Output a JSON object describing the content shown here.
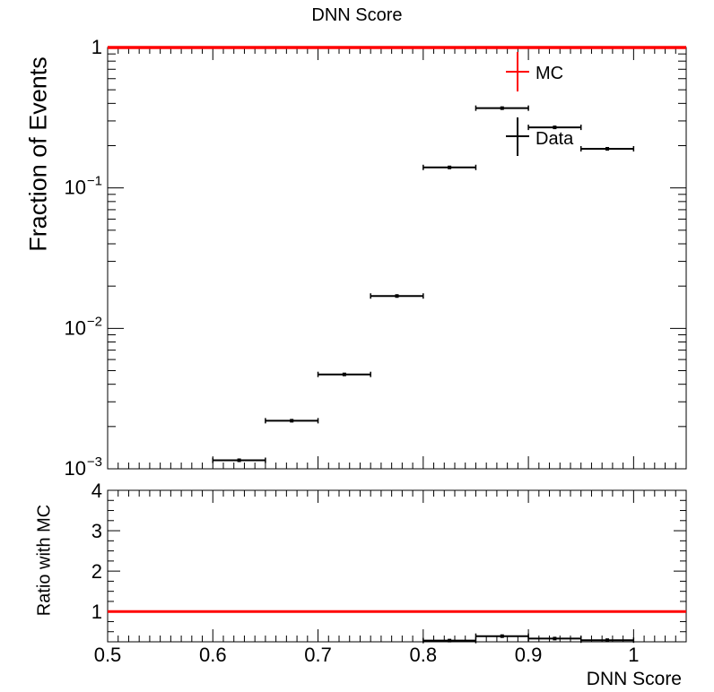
{
  "title": "DNN Score",
  "chart_data": [
    {
      "type": "scatter",
      "panel": "main",
      "title": "DNN Score",
      "ylabel": "Fraction of Events",
      "yscale": "log",
      "xlim": [
        0.5,
        1.05
      ],
      "ylim": [
        0.001,
        1
      ],
      "y_tick_labels": [
        "10^-3",
        "10^-2",
        "10^-1",
        "1"
      ],
      "legend": {
        "placement": "top-right",
        "entries": [
          "MC",
          "Data"
        ]
      },
      "colors": {
        "MC": "#ff0000",
        "Data": "#000000"
      },
      "series": [
        {
          "name": "MC",
          "x_low": [
            0.5
          ],
          "x_high": [
            1.05
          ],
          "y": [
            1.0
          ]
        },
        {
          "name": "Data",
          "x_low": [
            0.6,
            0.65,
            0.7,
            0.75,
            0.8,
            0.85,
            0.9,
            0.95
          ],
          "x_high": [
            0.65,
            0.7,
            0.75,
            0.8,
            0.85,
            0.9,
            0.95,
            1.0
          ],
          "y": [
            0.00115,
            0.0022,
            0.0047,
            0.017,
            0.14,
            0.37,
            0.27,
            0.19
          ]
        }
      ]
    },
    {
      "type": "scatter",
      "panel": "ratio",
      "ylabel": "Ratio with MC",
      "xlabel": "DNN Score",
      "xlim": [
        0.5,
        1.05
      ],
      "ylim": [
        0.25,
        4
      ],
      "x_tick_labels": [
        "0.5",
        "0.6",
        "0.7",
        "0.8",
        "0.9",
        "1"
      ],
      "y_tick_labels": [
        "1",
        "2",
        "3",
        "4"
      ],
      "reference_line": 1,
      "series": [
        {
          "name": "Data/MC",
          "x_low": [
            0.8,
            0.85,
            0.9,
            0.95
          ],
          "x_high": [
            0.85,
            0.9,
            0.95,
            1.0
          ],
          "y": [
            0.28,
            0.39,
            0.33,
            0.29
          ]
        }
      ]
    }
  ]
}
